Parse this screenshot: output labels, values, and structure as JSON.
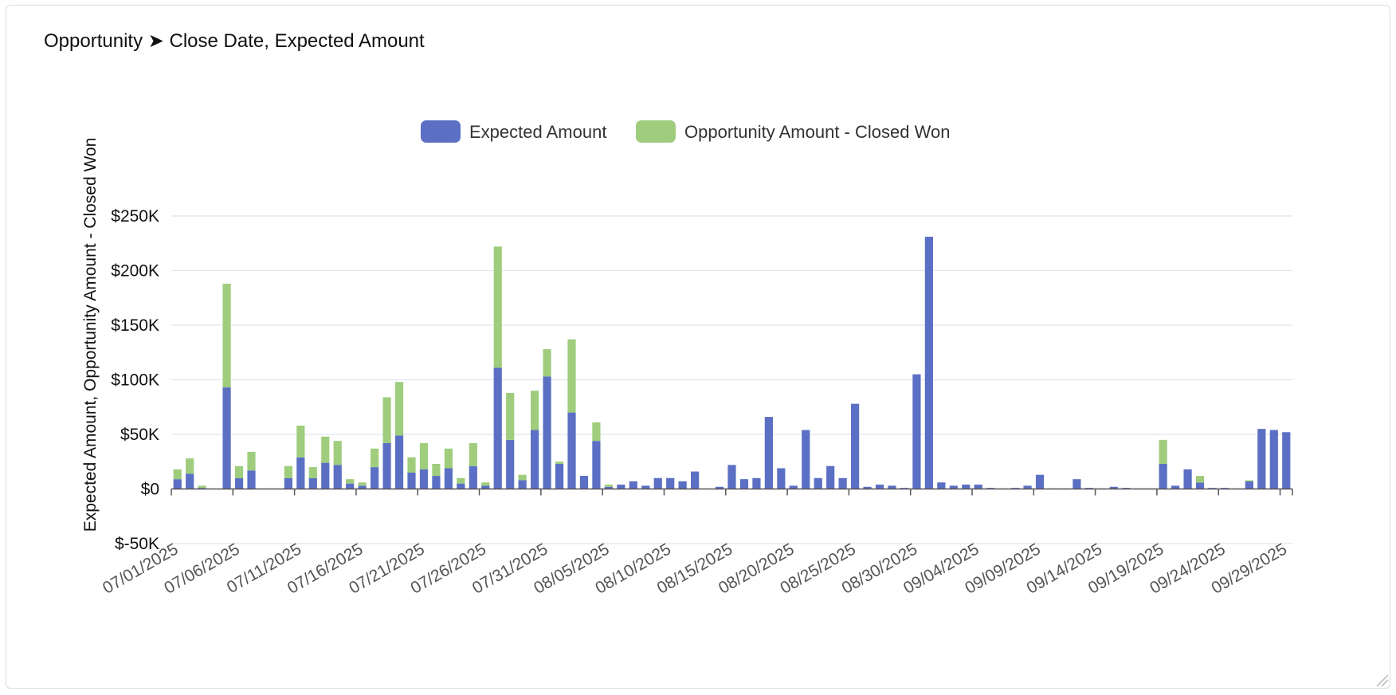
{
  "card": {
    "title": "Opportunity ➤ Close Date, Expected Amount"
  },
  "chart_data": {
    "type": "bar",
    "stacked": true,
    "title": "",
    "ylabel": "Expected Amount, Opportunity Amount - Closed Won",
    "xlabel": "",
    "ylim": [
      -50000,
      250000
    ],
    "yticks": [
      -50000,
      0,
      50000,
      100000,
      150000,
      200000,
      250000
    ],
    "ytick_labels": [
      "$-50K",
      "$0",
      "$50K",
      "$100K",
      "$150K",
      "$200K",
      "$250K"
    ],
    "grid": true,
    "legend_position": "top-center",
    "x_start": "2025-07-01",
    "x_tick_labels": [
      "07/01/2025",
      "07/06/2025",
      "07/11/2025",
      "07/16/2025",
      "07/21/2025",
      "07/26/2025",
      "07/31/2025",
      "08/05/2025",
      "08/10/2025",
      "08/15/2025",
      "08/20/2025",
      "08/25/2025",
      "08/30/2025",
      "09/04/2025",
      "09/09/2025",
      "09/14/2025",
      "09/19/2025",
      "09/24/2025",
      "09/29/2025"
    ],
    "series": [
      {
        "name": "Expected Amount",
        "color": "#5b70c4",
        "values": [
          9000,
          14000,
          1000,
          0,
          93000,
          10000,
          17000,
          0,
          0,
          10000,
          29000,
          10000,
          24000,
          22000,
          5000,
          3000,
          20000,
          42000,
          49000,
          15000,
          18000,
          12000,
          19000,
          5000,
          21000,
          3000,
          111000,
          45000,
          8000,
          54000,
          103000,
          23000,
          70000,
          12000,
          44000,
          2000,
          4000,
          7000,
          3000,
          10000,
          10000,
          7000,
          16000,
          0,
          2000,
          22000,
          9000,
          10000,
          66000,
          19000,
          3000,
          54000,
          10000,
          21000,
          10000,
          78000,
          2000,
          4000,
          3000,
          1000,
          105000,
          231000,
          6000,
          3000,
          4000,
          4000,
          1000,
          500,
          1000,
          3000,
          13000,
          500,
          500,
          9000,
          1000,
          500,
          2000,
          1000,
          500,
          500,
          23000,
          3000,
          18000,
          6000,
          1000,
          1000,
          500,
          7000,
          55000,
          54000,
          52000
        ]
      },
      {
        "name": "Opportunity Amount - Closed Won",
        "color": "#9fcd7d",
        "values": [
          9000,
          14000,
          2000,
          0,
          95000,
          11000,
          17000,
          0,
          0,
          11000,
          29000,
          10000,
          24000,
          22000,
          4000,
          3000,
          17000,
          42000,
          49000,
          14000,
          24000,
          11000,
          18000,
          5000,
          21000,
          3000,
          111000,
          43000,
          5000,
          36000,
          25000,
          2000,
          67000,
          0,
          17000,
          2000,
          0,
          0,
          0,
          0,
          0,
          0,
          0,
          0,
          0,
          0,
          0,
          0,
          0,
          0,
          0,
          0,
          0,
          0,
          0,
          0,
          0,
          0,
          0,
          0,
          0,
          0,
          0,
          0,
          0,
          0,
          0,
          0,
          0,
          0,
          0,
          0,
          0,
          0,
          0,
          0,
          0,
          0,
          0,
          0,
          22000,
          0,
          0,
          6000,
          0,
          0,
          0,
          1000,
          0,
          0,
          0
        ]
      }
    ]
  }
}
